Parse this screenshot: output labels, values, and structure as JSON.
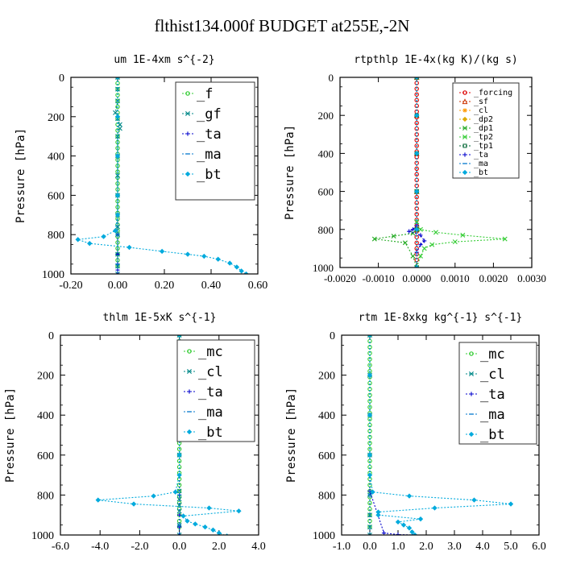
{
  "figure": {
    "title": "flthist134.000f  BUDGET at255E,-2N"
  },
  "chart_data": [
    {
      "type": "line",
      "title": "um   1E-4xm s^{-2}",
      "ylabel": "Pressure [hPa]",
      "xlabel": "",
      "xlim": [
        -0.2,
        0.6
      ],
      "ylim": [
        1000,
        0
      ],
      "y_reversed": true,
      "grid": false,
      "legend_position": "top-right",
      "x_ticks": [
        -0.2,
        0.0,
        0.2,
        0.4,
        0.6
      ],
      "x_tick_labels": [
        "-0.20",
        "0.00",
        "0.20",
        "0.40",
        "0.60"
      ],
      "y_ticks": [
        0,
        200,
        400,
        600,
        800,
        1000
      ],
      "y_tick_labels": [
        "0",
        "200",
        "400",
        "600",
        "800",
        "1000"
      ],
      "series": [
        {
          "name": "_f",
          "color": "#33cc33",
          "marker": "circle",
          "x": [
            0,
            0,
            0,
            0,
            0,
            0,
            0,
            0,
            0,
            0,
            0,
            0,
            0,
            0,
            0,
            0,
            0,
            0,
            0,
            0,
            0,
            0,
            0,
            0,
            0,
            0,
            0,
            0,
            0,
            0,
            0,
            0,
            0
          ],
          "y": [
            0,
            30,
            60,
            90,
            120,
            150,
            180,
            210,
            240,
            270,
            300,
            330,
            360,
            390,
            420,
            450,
            480,
            510,
            540,
            570,
            600,
            630,
            660,
            690,
            720,
            750,
            780,
            810,
            840,
            870,
            900,
            930,
            960
          ]
        },
        {
          "name": "_gf",
          "color": "#008888",
          "marker": "cross",
          "x": [
            0.0,
            0.0,
            0.0,
            -0.01,
            0.0,
            0.01,
            0.01,
            0.0,
            0.0,
            0.0,
            0.0,
            0.0,
            0.0,
            0.0,
            0.0,
            0.0,
            0.0
          ],
          "y": [
            0,
            60,
            120,
            180,
            210,
            240,
            260,
            300,
            400,
            500,
            600,
            700,
            760,
            800,
            900,
            960,
            1000
          ]
        },
        {
          "name": "_ta",
          "color": "#0000cc",
          "marker": "plus",
          "x": [
            0.0,
            0.0,
            0.0,
            0.0,
            0.0,
            0.0,
            0.0,
            0.0,
            0.0
          ],
          "y": [
            0,
            200,
            400,
            600,
            800,
            900,
            950,
            980,
            1000
          ]
        },
        {
          "name": "_ma",
          "color": "#0077cc",
          "marker": "dash",
          "x": [
            0.0,
            0.0,
            0.0,
            0.0,
            0.0,
            0.0,
            0.0
          ],
          "y": [
            0,
            200,
            400,
            600,
            800,
            950,
            1000
          ]
        },
        {
          "name": "_bt",
          "color": "#00aadd",
          "marker": "diamond",
          "x": [
            0.0,
            0.0,
            0.0,
            0.0,
            0.0,
            -0.01,
            -0.06,
            -0.17,
            -0.12,
            0.05,
            0.19,
            0.3,
            0.37,
            0.43,
            0.48,
            0.51,
            0.53,
            0.55
          ],
          "y": [
            0,
            200,
            400,
            600,
            700,
            780,
            810,
            825,
            845,
            865,
            885,
            900,
            910,
            925,
            945,
            965,
            985,
            1000
          ]
        }
      ]
    },
    {
      "type": "line",
      "title": "rtpthlp   1E-4x(kg K)/(kg s)",
      "ylabel": "Pressure [hPa]",
      "xlabel": "",
      "xlim": [
        -0.002,
        0.003
      ],
      "ylim": [
        1000,
        0
      ],
      "y_reversed": true,
      "grid": false,
      "legend_position": "top-right",
      "x_ticks": [
        -0.002,
        -0.001,
        0.0,
        0.001,
        0.002,
        0.003
      ],
      "x_tick_labels": [
        "-0.0020",
        "-0.0010",
        "0.0000",
        "0.0010",
        "0.0020",
        "0.0030"
      ],
      "y_ticks": [
        0,
        200,
        400,
        600,
        800,
        1000
      ],
      "y_tick_labels": [
        "0",
        "200",
        "400",
        "600",
        "800",
        "1000"
      ],
      "series": [
        {
          "name": "_forcing",
          "color": "#dd0000",
          "marker": "circle",
          "x": [
            0,
            0,
            0,
            0,
            0,
            0,
            0,
            0,
            0,
            0,
            0,
            0,
            0,
            0,
            0,
            0,
            0,
            0,
            0,
            0,
            0,
            0,
            0,
            0,
            0,
            0,
            0,
            0,
            0,
            0,
            0,
            0,
            0
          ],
          "y": [
            0,
            30,
            60,
            90,
            120,
            150,
            180,
            210,
            240,
            270,
            300,
            330,
            360,
            390,
            420,
            450,
            480,
            510,
            540,
            570,
            600,
            630,
            660,
            690,
            720,
            750,
            780,
            810,
            840,
            870,
            900,
            930,
            960
          ]
        },
        {
          "name": "_sf",
          "color": "#cc3300",
          "marker": "triangle",
          "x": [
            0,
            0,
            0,
            0,
            0,
            0
          ],
          "y": [
            0,
            200,
            400,
            600,
            800,
            1000
          ]
        },
        {
          "name": "_cl",
          "color": "#ff9900",
          "marker": "star",
          "x": [
            0,
            0,
            0,
            0,
            0,
            0
          ],
          "y": [
            0,
            200,
            400,
            600,
            800,
            1000
          ]
        },
        {
          "name": "_dp2",
          "color": "#ddaa00",
          "marker": "diamond",
          "x": [
            0,
            0,
            0,
            0,
            0,
            0
          ],
          "y": [
            0,
            200,
            400,
            600,
            800,
            1000
          ]
        },
        {
          "name": "_dp1",
          "color": "#22aa22",
          "marker": "cross",
          "x": [
            0.0,
            0.0,
            0.0,
            0.0,
            -0.0001,
            -0.0006,
            -0.0011,
            -0.0003,
            -0.0001,
            0.0
          ],
          "y": [
            0,
            600,
            760,
            800,
            820,
            835,
            850,
            870,
            940,
            1000
          ]
        },
        {
          "name": "_tp2",
          "color": "#33cc33",
          "marker": "cross",
          "x": [
            0.0,
            0.0,
            0.0,
            0.0001,
            0.0005,
            0.0012,
            0.0023,
            0.001,
            0.0004,
            0.0002,
            0.0001,
            0.0
          ],
          "y": [
            0,
            600,
            760,
            800,
            815,
            830,
            850,
            865,
            880,
            900,
            940,
            1000
          ]
        },
        {
          "name": "_tp1",
          "color": "#006633",
          "marker": "square",
          "x": [
            0,
            0,
            0,
            0,
            0,
            0
          ],
          "y": [
            0,
            200,
            400,
            600,
            800,
            1000
          ]
        },
        {
          "name": "_ta",
          "color": "#0000cc",
          "marker": "plus",
          "x": [
            0.0,
            0.0,
            0.0,
            -0.0001,
            -0.0002,
            0.0001,
            0.0002,
            0.0001,
            0.0,
            0.0
          ],
          "y": [
            0,
            600,
            780,
            800,
            810,
            830,
            860,
            880,
            920,
            1000
          ]
        },
        {
          "name": "_ma",
          "color": "#0077cc",
          "marker": "dash",
          "x": [
            0,
            0,
            0,
            0,
            0,
            0
          ],
          "y": [
            0,
            200,
            400,
            600,
            800,
            1000
          ]
        },
        {
          "name": "_bt",
          "color": "#00aadd",
          "marker": "diamond",
          "x": [
            0,
            0,
            0,
            0,
            0,
            0
          ],
          "y": [
            0,
            200,
            400,
            600,
            800,
            1000
          ]
        }
      ]
    },
    {
      "type": "line",
      "title": "thlm   1E-5xK  s^{-1}",
      "ylabel": "Pressure [hPa]",
      "xlabel": "",
      "xlim": [
        -6.0,
        4.0
      ],
      "ylim": [
        1000,
        0
      ],
      "y_reversed": true,
      "grid": false,
      "legend_position": "top-right",
      "x_ticks": [
        -6,
        -4,
        -2,
        0,
        2,
        4
      ],
      "x_tick_labels": [
        "-6.0",
        "-4.0",
        "-2.0",
        "0.0",
        "2.0",
        "4.0"
      ],
      "y_ticks": [
        0,
        200,
        400,
        600,
        800,
        1000
      ],
      "y_tick_labels": [
        "0",
        "200",
        "400",
        "600",
        "800",
        "1000"
      ],
      "series": [
        {
          "name": "_mc",
          "color": "#33cc33",
          "marker": "circle",
          "x": [
            0,
            0,
            0,
            0,
            0,
            0,
            0,
            0,
            0,
            0,
            0,
            0,
            0,
            0,
            0,
            0,
            0,
            0,
            0,
            0,
            0,
            0,
            0,
            0,
            0,
            0,
            0,
            0,
            0,
            0,
            0,
            0,
            0
          ],
          "y": [
            0,
            30,
            60,
            90,
            120,
            150,
            180,
            210,
            240,
            270,
            300,
            330,
            360,
            390,
            420,
            450,
            480,
            510,
            540,
            570,
            600,
            630,
            660,
            690,
            720,
            750,
            780,
            810,
            840,
            870,
            900,
            930,
            960
          ]
        },
        {
          "name": "_cl",
          "color": "#008888",
          "marker": "cross",
          "x": [
            0.0,
            0.0,
            0.0,
            0.0,
            0.0,
            0.0,
            0.0,
            0.0,
            0.0,
            0.0
          ],
          "y": [
            0,
            200,
            400,
            600,
            780,
            820,
            850,
            880,
            950,
            1000
          ]
        },
        {
          "name": "_ta",
          "color": "#0000cc",
          "marker": "plus",
          "x": [
            0.0,
            0.0,
            0.0,
            0.0,
            0.0,
            0.0,
            0.0,
            0.0
          ],
          "y": [
            0,
            200,
            400,
            600,
            800,
            900,
            960,
            1000
          ]
        },
        {
          "name": "_ma",
          "color": "#0077cc",
          "marker": "dash",
          "x": [
            0.0,
            0.0,
            0.0,
            0.0,
            0.0,
            0.0,
            0.0
          ],
          "y": [
            0,
            200,
            400,
            600,
            800,
            950,
            1000
          ]
        },
        {
          "name": "_bt",
          "color": "#00aadd",
          "marker": "diamond",
          "x": [
            0.0,
            0.0,
            0.0,
            0.0,
            0.0,
            -0.2,
            -1.3,
            -4.1,
            -2.3,
            1.5,
            3.0,
            0.2,
            0.4,
            0.8,
            1.3,
            1.7,
            2.0,
            2.4
          ],
          "y": [
            0,
            200,
            400,
            600,
            700,
            785,
            805,
            825,
            845,
            865,
            880,
            905,
            930,
            945,
            960,
            975,
            990,
            1005
          ]
        }
      ]
    },
    {
      "type": "line",
      "title": "rtm   1E-8xkg kg^{-1} s^{-1}",
      "ylabel": "Pressure [hPa]",
      "xlabel": "",
      "xlim": [
        -1.0,
        6.0
      ],
      "ylim": [
        1000,
        0
      ],
      "y_reversed": true,
      "grid": false,
      "legend_position": "top-right",
      "x_ticks": [
        -1,
        0,
        1,
        2,
        3,
        4,
        5,
        6
      ],
      "x_tick_labels": [
        "-1.0",
        "0.0",
        "1.0",
        "2.0",
        "3.0",
        "4.0",
        "5.0",
        "6.0"
      ],
      "y_ticks": [
        0,
        200,
        400,
        600,
        800,
        1000
      ],
      "y_tick_labels": [
        "0",
        "200",
        "400",
        "600",
        "800",
        "1000"
      ],
      "series": [
        {
          "name": "_mc",
          "color": "#33cc33",
          "marker": "circle",
          "x": [
            0,
            0,
            0,
            0,
            0,
            0,
            0,
            0,
            0,
            0,
            0,
            0,
            0,
            0,
            0,
            0,
            0,
            0,
            0,
            0,
            0,
            0,
            0,
            0,
            0,
            0,
            0,
            0,
            0,
            0,
            0,
            0,
            0
          ],
          "y": [
            0,
            30,
            60,
            90,
            120,
            150,
            180,
            210,
            240,
            270,
            300,
            330,
            360,
            390,
            420,
            450,
            480,
            510,
            540,
            570,
            600,
            630,
            660,
            690,
            720,
            750,
            780,
            810,
            840,
            870,
            900,
            930,
            960
          ]
        },
        {
          "name": "_cl",
          "color": "#008888",
          "marker": "cross",
          "x": [
            0.0,
            0.0,
            0.0,
            0.0,
            0.0,
            0.0,
            0.0,
            0.0
          ],
          "y": [
            0,
            200,
            400,
            600,
            800,
            900,
            960,
            1000
          ]
        },
        {
          "name": "_ta",
          "color": "#0000cc",
          "marker": "plus",
          "x": [
            0.0,
            0.0,
            0.0,
            0.0,
            0.0,
            0.5,
            1.0,
            1.5
          ],
          "y": [
            0,
            200,
            400,
            600,
            780,
            990,
            998,
            1000
          ]
        },
        {
          "name": "_ma",
          "color": "#0077cc",
          "marker": "dash",
          "x": [
            0.0,
            0.0,
            0.0,
            0.0,
            0.0,
            0.0
          ],
          "y": [
            0,
            200,
            400,
            600,
            800,
            1000
          ]
        },
        {
          "name": "_bt",
          "color": "#00aadd",
          "marker": "diamond",
          "x": [
            0.0,
            0.0,
            0.0,
            0.0,
            0.0,
            0.1,
            1.4,
            3.7,
            5.0,
            2.3,
            0.3,
            0.3,
            1.8,
            1.0,
            1.2,
            1.4,
            1.5,
            1.6
          ],
          "y": [
            0,
            200,
            400,
            600,
            700,
            785,
            805,
            825,
            845,
            865,
            885,
            900,
            920,
            935,
            950,
            965,
            985,
            1000
          ]
        }
      ]
    }
  ]
}
